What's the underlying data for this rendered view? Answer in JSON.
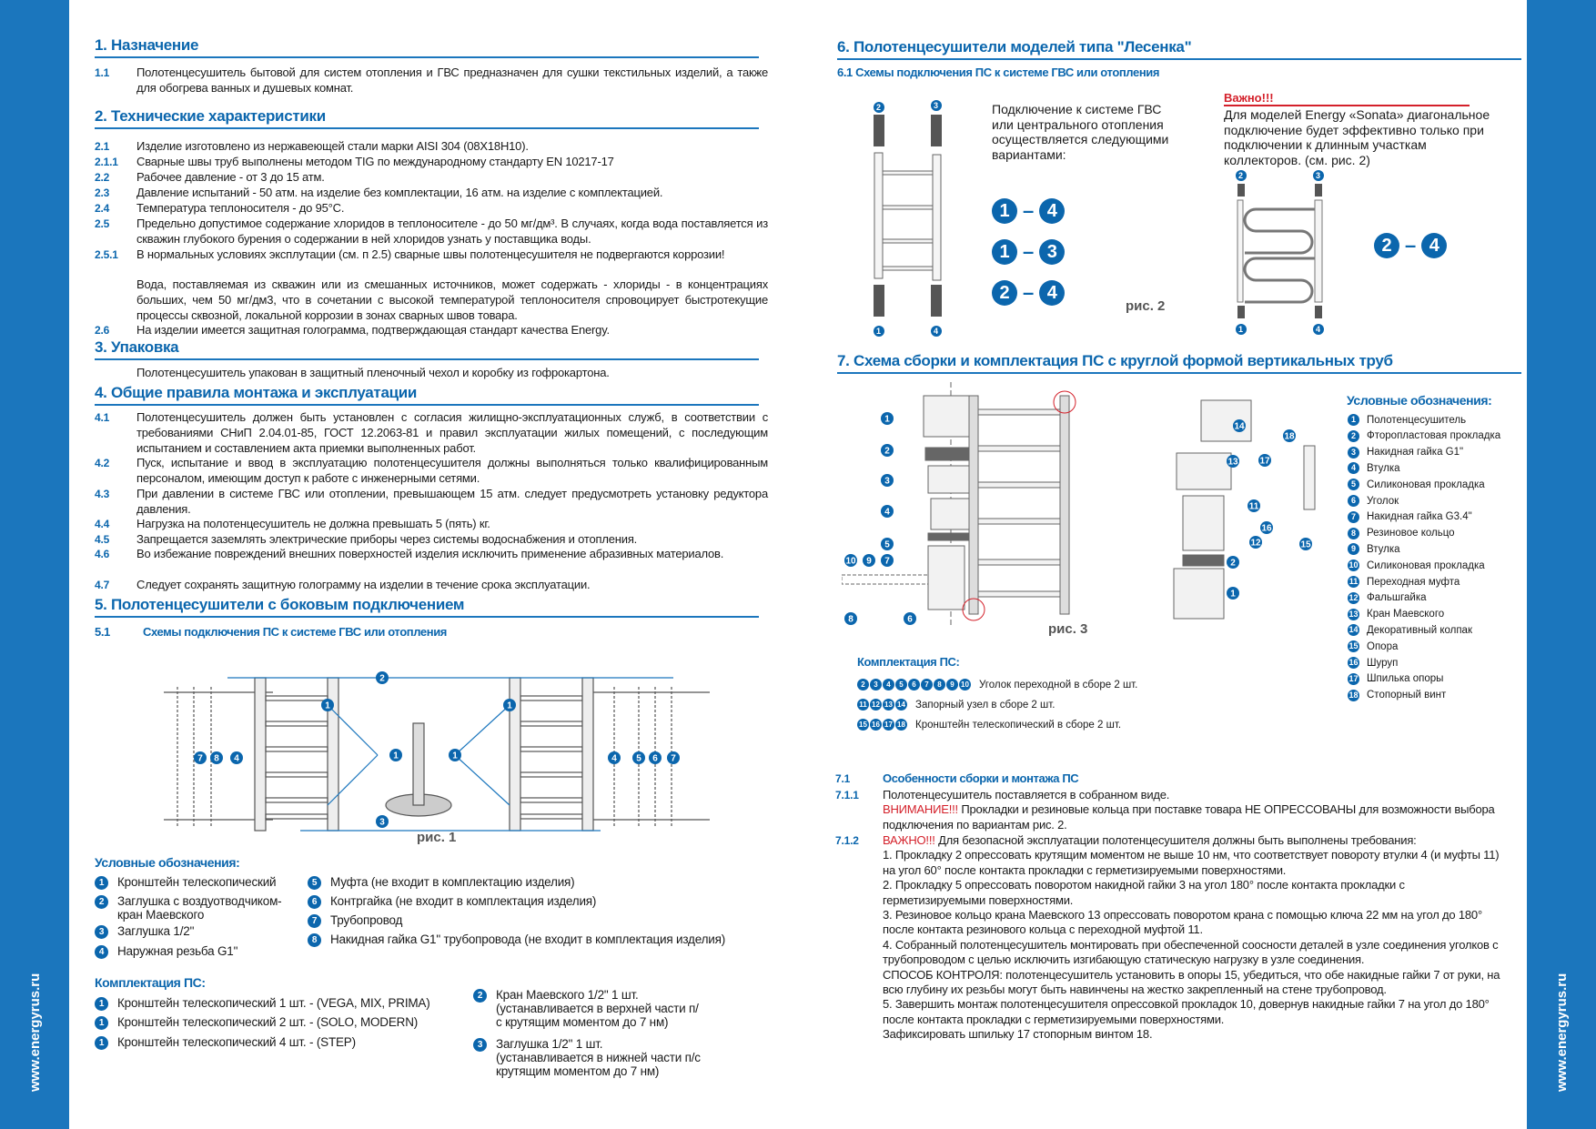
{
  "site": "www.energyrus.ru",
  "colors": {
    "brand": "#1b76bd",
    "heading": "#0b66ad",
    "warning": "#d4202a"
  },
  "s1": {
    "title": "1. Назначение",
    "items": [
      {
        "n": "1.1",
        "t": "Полотенцесушитель бытовой для систем отопления и ГВС предназначен для сушки текстильных изделий, а также для обогрева ванных и душевых комнат."
      }
    ]
  },
  "s2": {
    "title": "2. Технические характеристики",
    "items": [
      {
        "n": "2.1",
        "t": "Изделие изготовлено из нержавеющей стали марки AISI 304 (08Х18Н10)."
      },
      {
        "n": "2.1.1",
        "t": "Сварные швы труб выполнены методом TIG по международному стандарту EN 10217-17"
      },
      {
        "n": "2.2",
        "t": "Рабочее давление - от 3 до 15 атм."
      },
      {
        "n": "2.3",
        "t": "Давление испытаний - 50 атм. на изделие без комплектации, 16 атм. на изделие с комплектацией."
      },
      {
        "n": "2.4",
        "t": "Температура теплоносителя - до 95°С."
      },
      {
        "n": "2.5",
        "t": "Предельно допустимое содержание хлоридов в теплоносителе - до 50 мг/дм³. В случаях, когда вода поставляется из скважин глубокого бурения о содержании в ней хлоридов узнать у поставщика воды."
      },
      {
        "n": "2.5.1",
        "t": "В нормальных условиях эксплутации (см. п 2.5) сварные швы полотенцесушителя не подвергаются коррозии!"
      },
      {
        "n": "",
        "t": "Вода, поставляемая из скважин или из смешанных источников, может содержать - хлориды - в концентрациях больших, чем 50 мг/дм3, что в сочетании с высокой температурой теплоносителя спровоцирует быстротекущие процессы сквозной, локальной коррозии в зонах сварных швов товара."
      },
      {
        "n": "2.6",
        "t": "На изделии имеется защитная голограмма, подтверждающая стандарт качества Energy."
      }
    ]
  },
  "s3": {
    "title": "3. Упаковка",
    "text": "Полотенцесушитель упакован в защитный пленочный чехол и коробку из гофрокартона."
  },
  "s4": {
    "title": "4. Общие правила монтажа и эксплуатации",
    "items": [
      {
        "n": "4.1",
        "t": "Полотенцесушитель должен быть установлен с согласия жилищно-эксплуатационных служб, в соответствии с требованиями СНиП 2.04.01-85, ГОСТ 12.2063-81 и правил эксплуатации жилых помещений, с последующим испытанием и составлением акта приемки выполненных работ."
      },
      {
        "n": "4.2",
        "t": "Пуск, испытание и ввод в эксплуатацию полотенцесушителя должны выполняться только квалифицированным персоналом, имеющим доступ к работе с инженерными сетями."
      },
      {
        "n": "4.3",
        "t": "При давлении в системе ГВС или отоплении, превышающем 15 атм. следует предусмотреть установку редуктора давления."
      },
      {
        "n": "4.4",
        "t": "Нагрузка на полотенцесушитель не должна превышать 5 (пять) кг."
      },
      {
        "n": "4.5",
        "t": "Запрещается заземлять электрические приборы через системы водоснабжения и отопления."
      },
      {
        "n": "4.6",
        "t": "Во избежание повреждений внешних поверхностей изделия исключить применение абразивных материалов."
      },
      {
        "n": "4.7",
        "t": "Следует сохранять защитную голограмму на изделии в течение срока эксплуатации."
      }
    ]
  },
  "s5": {
    "title": "5. Полотенцесушители с боковым подключением",
    "sub_n": "5.1",
    "sub": "Схемы подключения ПС к системе ГВС или отопления",
    "fig": "рис. 1",
    "legend_title": "Условные обозначения:",
    "legend": [
      {
        "n": "1",
        "t": "Кронштейн телескопический"
      },
      {
        "n": "2",
        "t": "Заглушка с воздуотводчиком-кран Маевского"
      },
      {
        "n": "3",
        "t": "Заглушка 1/2\""
      },
      {
        "n": "4",
        "t": "Наружная резьба G1\""
      },
      {
        "n": "5",
        "t": "Муфта (не входит в комплектацию изделия)"
      },
      {
        "n": "6",
        "t": "Контргайка (не входит в комплектация изделия)"
      },
      {
        "n": "7",
        "t": "Трубопровод"
      },
      {
        "n": "8",
        "t": "Накидная гайка G1\" трубопровода (не входит в комплектация изделия)"
      }
    ],
    "kit_title": "Комплектация ПС:",
    "kit": [
      {
        "n": "1",
        "t": "Кронштейн телескопический 1 шт. - (VEGA, MIX, PRIMA)"
      },
      {
        "n": "1",
        "t": "Кронштейн телескопический 2 шт. - (SOLO, MODERN)"
      },
      {
        "n": "1",
        "t": "Кронштейн телескопический 4 шт. - (STEP)"
      },
      {
        "n": "2",
        "t": "Кран Маевского 1/2\" 1 шт. (устанавливается в верхней части п/с крутящим моментом до 7 нм)"
      },
      {
        "n": "3",
        "t": "Заглушка 1/2\" 1 шт. (устанавливается в нижней части п/с крутящим моментом до 7 нм)"
      }
    ]
  },
  "s6": {
    "title": "6. Полотенцесушители моделей типа \"Лесенка\"",
    "sub": "6.1 Схемы подключения ПС к системе ГВС или отопления",
    "intro": "Подключение к системе ГВС или центрального отопления осуществляется следующими вариантами:",
    "variants": [
      [
        "1",
        "4"
      ],
      [
        "1",
        "3"
      ],
      [
        "2",
        "4"
      ]
    ],
    "fig": "рис. 2",
    "important_title": "Важно!!!",
    "important": "Для моделей Energy «Sonata» диагональное подключение будет эффективно только при подключении к длинным участкам коллекторов. (см. рис. 2)",
    "sonata_variant": [
      "2",
      "4"
    ]
  },
  "s7": {
    "title": "7. Схема сборки и комплектация ПС с круглой формой вертикальных труб",
    "fig": "рис. 3",
    "legend_title": "Условные обозначения:",
    "legend": [
      "Полотенцесушитель",
      "Фторопластовая прокладка",
      "Накидная гайка G1\"",
      "Втулка",
      "Силиконовая прокладка",
      "Уголок",
      "Накидная гайка G3.4\"",
      "Резиновое кольцо",
      "Втулка",
      "Силиконовая прокладка",
      "Переходная муфта",
      "Фальшгайка",
      "Кран Маевского",
      "Декоративный колпак",
      "Опора",
      "Шуруп",
      "Шпилька опоры",
      "Стопорный винт"
    ],
    "kit_title": "Комплектация ПС:",
    "kit": [
      {
        "nums": [
          "2",
          "3",
          "4",
          "5",
          "6",
          "7",
          "8",
          "9",
          "10"
        ],
        "t": "Уголок переходной в сборе 2 шт."
      },
      {
        "nums": [
          "11",
          "12",
          "13",
          "14"
        ],
        "t": "Запорный узел в сборе 2 шт."
      },
      {
        "nums": [
          "15",
          "16",
          "17",
          "18"
        ],
        "t": "Кронштейн телескопический в сборе 2 шт."
      }
    ],
    "sub_n": "7.1",
    "sub": "Особенности сборки и монтажа ПС",
    "p711_n": "7.1.1",
    "p711": "Полотенцесушитель поставляется в собранном виде.",
    "p711_warn": "ВНИМАНИЕ!!!",
    "p711_warn_t": " Прокладки и резиновые кольца при поставке товара НЕ  ОПРЕССОВАНЫ для возможности выбора подключения по вариантам рис. 2.",
    "p712_n": "7.1.2",
    "p712_warn": "ВАЖНО!!!",
    "p712_t": " Для безопасной эксплуатации полотенцесушителя должны быть выполнены требования:",
    "p712_lines": [
      "1. Прокладку 2 опрессовать крутящим моментом не выше 10 нм, что соответствует повороту втулки 4 (и муфты 11) на угол 60° после контакта прокладки с герметизируемыми поверхностями.",
      "2. Прокладку 5 опрессовать поворотом накидной гайки 3 на угол 180° после контакта  прокладки с герметизируемыми поверхностями.",
      "3. Резиновое кольцо крана Маевского 13 опрессовать поворотом крана с помощью ключа 22 мм на угол до 180° после контакта резинового кольца с переходной муфтой 11.",
      "4. Собранный полотенцесушитель монтировать при обеспеченной соосности деталей в узле соединения уголков с трубопроводом с целью исключить изгибающую статическую нагрузку в узле соединения.",
      "СПОСОБ КОНТРОЛЯ: полотенцесушитель установить в опоры 15, убедиться, что обе накидные гайки 7 от руки, на всю глубину их резьбы могут быть навинчены на жестко закрепленный на стене трубопровод.",
      "5. Завершить монтаж полотенцесушителя опрессовкой прокладок 10, довернув накидные гайки 7 на угол до 180° после контакта прокладки с герметизируемыми поверхностями.",
      "Зафиксировать шпильку 17 стопорным винтом 18."
    ]
  }
}
